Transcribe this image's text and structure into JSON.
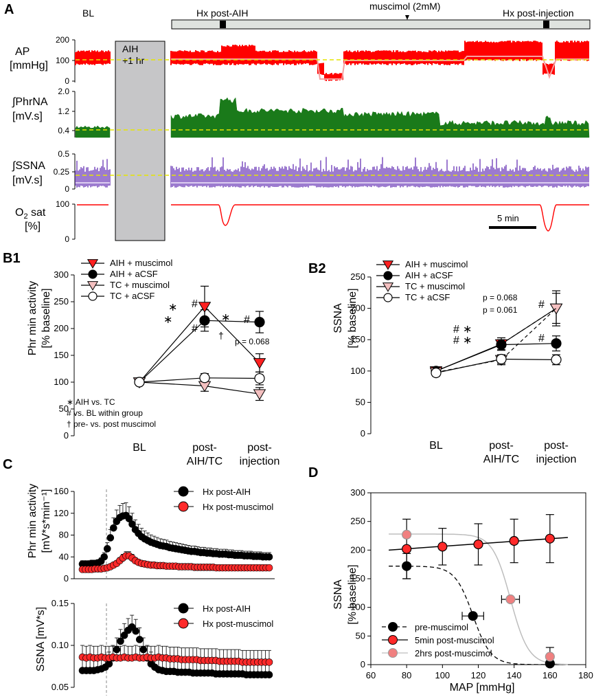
{
  "panel_labels": {
    "a": "A",
    "b1": "B1",
    "b2": "B2",
    "c": "C",
    "d": "D"
  },
  "panel_a": {
    "baseline_label": "BL",
    "top_bar_labels": [
      "Hx post-AIH",
      "muscimol (2mM)",
      "Hx post-injection"
    ],
    "gap_label_line1": "AIH",
    "gap_label_line2": "+1 hr",
    "traces": [
      {
        "label_line1": "AP",
        "label_line2": "[mmHg]",
        "ticks": [
          "0",
          "100",
          "200"
        ],
        "color": "#ff0000"
      },
      {
        "label_line1": "∫PhrNA",
        "label_line2": "[mV.s]",
        "ticks": [
          "0.4",
          "1.2",
          "2.0"
        ],
        "color": "#1a7a1a"
      },
      {
        "label_line1": "∫SSNA",
        "label_line2": "[mV.s]",
        "ticks": [
          "0",
          "0.25",
          "0.5"
        ],
        "color": "#7b4fbf"
      },
      {
        "label_line1": "O",
        "label_sub": "2",
        "label_line1b": " sat",
        "label_line2": "[%]",
        "ticks": [
          "0",
          "100"
        ],
        "color": "#ff0000"
      }
    ],
    "scale_bar_label": "5 min"
  },
  "chart_data": [
    {
      "id": "B1",
      "type": "line",
      "ylabel": "Phr min activity [% baseline]",
      "categories": [
        "BL",
        "post-AIH/TC",
        "post-injection"
      ],
      "ylim": [
        0,
        300
      ],
      "yticks": [
        0,
        50,
        100,
        150,
        200,
        250,
        300
      ],
      "series": [
        {
          "name": "AIH + muscimol",
          "marker": "triangle",
          "fill": "#ff2020",
          "values": [
            100,
            241,
            136
          ],
          "err": [
            5,
            38,
            17
          ]
        },
        {
          "name": "AIH + aCSF",
          "marker": "circle",
          "fill": "#000000",
          "values": [
            100,
            215,
            212
          ],
          "err": [
            5,
            20,
            20
          ]
        },
        {
          "name": "TC + muscimol",
          "marker": "triangle",
          "fill": "#f4c0c0",
          "values": [
            100,
            93,
            78
          ],
          "err": [
            5,
            10,
            12
          ]
        },
        {
          "name": "TC + aCSF",
          "marker": "circle",
          "fill": "#ffffff",
          "values": [
            100,
            108,
            107
          ],
          "err": [
            5,
            8,
            12
          ]
        }
      ],
      "annotations": [
        "p = 0.068",
        "∗  AIH vs. TC",
        "#  vs. BL within group",
        "†  pre- vs. post muscimol"
      ]
    },
    {
      "id": "B2",
      "type": "line",
      "ylabel": "SSNA [% baseline]",
      "categories": [
        "BL",
        "post-AIH/TC",
        "post-injection"
      ],
      "ylim": [
        0,
        250
      ],
      "yticks": [
        0,
        50,
        100,
        150,
        200,
        250
      ],
      "series": [
        {
          "name": "AIH + muscimol",
          "marker": "triangle",
          "fill": "#ff2020",
          "values": [
            100,
            143,
            200
          ],
          "err": [
            5,
            10,
            24
          ]
        },
        {
          "name": "AIH + aCSF",
          "marker": "circle",
          "fill": "#000000",
          "values": [
            100,
            142,
            144
          ],
          "err": [
            5,
            8,
            12
          ]
        },
        {
          "name": "TC + muscimol",
          "marker": "triangle",
          "fill": "#f4c0c0",
          "values": [
            98,
            118,
            200
          ],
          "err": [
            5,
            8,
            28
          ]
        },
        {
          "name": "TC + aCSF",
          "marker": "circle",
          "fill": "#ffffff",
          "values": [
            97,
            119,
            118
          ],
          "err": [
            5,
            7,
            8
          ]
        }
      ],
      "annotations": [
        "p = 0.068",
        "p = 0.061"
      ]
    },
    {
      "id": "C1",
      "type": "scatter",
      "ylabel_line1": "Phr min activity",
      "ylabel_line2": "[mV*s*min⁻¹]",
      "ylim": [
        0,
        160
      ],
      "yticks": [
        0,
        40,
        80,
        120,
        160
      ],
      "series": [
        {
          "name": "Hx post-AIH",
          "fill": "#000000",
          "values": [
            27,
            27,
            27,
            28,
            28,
            29,
            32,
            40,
            55,
            75,
            93,
            105,
            112,
            115,
            116,
            110,
            100,
            90,
            83,
            77,
            73,
            70,
            67,
            65,
            63,
            61,
            60,
            59,
            57,
            56,
            55,
            54,
            53,
            52,
            51,
            50,
            50,
            49,
            48,
            48,
            47,
            47,
            46,
            46,
            45,
            45,
            45,
            44,
            44,
            43,
            43,
            43,
            42,
            42,
            42,
            41,
            41,
            41,
            40,
            40,
            40
          ]
        },
        {
          "name": "Hx post-muscimol",
          "fill": "#ff2a2a",
          "values": [
            17,
            17,
            17,
            17,
            18,
            18,
            18,
            19,
            20,
            22,
            25,
            28,
            33,
            38,
            42,
            42,
            38,
            33,
            30,
            28,
            27,
            26,
            25,
            25,
            24,
            24,
            24,
            23,
            23,
            23,
            23,
            22,
            22,
            22,
            22,
            22,
            21,
            21,
            21,
            21,
            21,
            21,
            21,
            20,
            20,
            20,
            20,
            20,
            20,
            20,
            20,
            20,
            20,
            20,
            20,
            20,
            20,
            20,
            20,
            20,
            20
          ]
        }
      ]
    },
    {
      "id": "C2",
      "type": "scatter",
      "ylabel": "SSNA  [mV*s]",
      "ylim": [
        0.05,
        0.15
      ],
      "yticks": [
        "0.05",
        "0.10",
        "0.15"
      ],
      "series": [
        {
          "name": "Hx post-AIH",
          "fill": "#000000",
          "values": [
            0.07,
            0.07,
            0.07,
            0.07,
            0.071,
            0.072,
            0.074,
            0.078,
            0.085,
            0.095,
            0.105,
            0.112,
            0.118,
            0.122,
            0.117,
            0.107,
            0.095,
            0.085,
            0.078,
            0.074,
            0.071,
            0.07,
            0.069,
            0.069,
            0.069,
            0.068,
            0.068,
            0.068,
            0.068,
            0.067,
            0.067,
            0.067,
            0.067,
            0.067,
            0.067,
            0.066,
            0.066,
            0.066,
            0.066,
            0.066,
            0.066,
            0.066,
            0.066,
            0.065,
            0.065,
            0.065,
            0.065,
            0.065,
            0.065,
            0.065
          ]
        },
        {
          "name": "Hx post-muscimol",
          "fill": "#ff2a2a",
          "values": [
            0.086,
            0.085,
            0.086,
            0.085,
            0.085,
            0.086,
            0.085,
            0.085,
            0.086,
            0.085,
            0.085,
            0.086,
            0.085,
            0.085,
            0.086,
            0.085,
            0.085,
            0.086,
            0.085,
            0.085,
            0.086,
            0.085,
            0.085,
            0.084,
            0.084,
            0.084,
            0.083,
            0.083,
            0.083,
            0.083,
            0.083,
            0.082,
            0.082,
            0.082,
            0.082,
            0.082,
            0.081,
            0.081,
            0.081,
            0.081,
            0.081,
            0.081,
            0.08,
            0.08,
            0.08,
            0.08,
            0.08,
            0.08,
            0.08,
            0.08
          ]
        }
      ]
    },
    {
      "id": "D",
      "type": "scatter",
      "xlabel": "MAP [mmHg]",
      "ylabel_line1": "SSNA",
      "ylabel_line2": "[% baseline]",
      "xlim": [
        60,
        180
      ],
      "ylim": [
        0,
        300
      ],
      "xticks": [
        60,
        80,
        100,
        120,
        140,
        160,
        180
      ],
      "yticks": [
        0,
        50,
        100,
        150,
        200,
        250,
        300
      ],
      "series": [
        {
          "name": "pre-muscimol",
          "fill": "#000000",
          "line": "dashed",
          "points": [
            [
              80,
              172
            ],
            [
              117,
              85
            ],
            [
              160,
              2
            ]
          ],
          "yerr": [
            22,
            0,
            0
          ],
          "xerr": [
            0,
            6,
            0
          ]
        },
        {
          "name": "5min post-muscimol",
          "fill": "#ff2a2a",
          "line": "solid",
          "points": [
            [
              80,
              202
            ],
            [
              100,
              206
            ],
            [
              120,
              210
            ],
            [
              140,
              216
            ],
            [
              160,
              220
            ]
          ],
          "yerr": [
            52,
            32,
            36,
            38,
            42
          ],
          "xerr": [
            0,
            0,
            0,
            0,
            0
          ]
        },
        {
          "name": "2hrs post-muscimol",
          "fill": "#f08080",
          "line": "gray",
          "points": [
            [
              80,
              227
            ],
            [
              138,
              114
            ],
            [
              160,
              14
            ]
          ],
          "yerr": [
            0,
            0,
            16
          ],
          "xerr": [
            0,
            5,
            0
          ]
        }
      ]
    }
  ]
}
